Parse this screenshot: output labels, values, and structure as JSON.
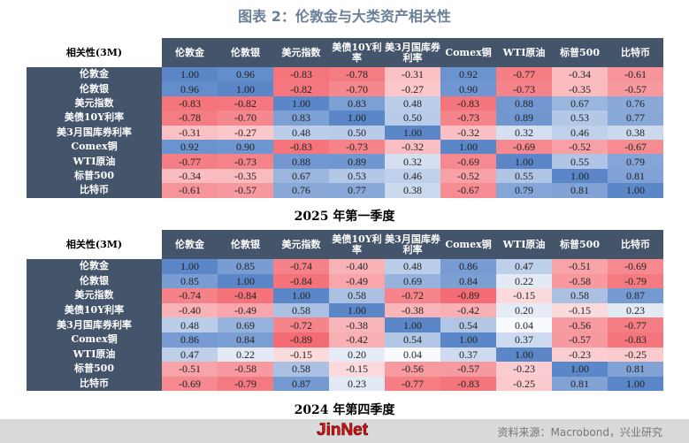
{
  "title": "图表 2：伦敦金与大类资产相关性",
  "chart_data": [
    {
      "type": "heatmap",
      "caption": "2025 年第一季度",
      "corner": "相关性(3M)",
      "columns": [
        "伦敦金",
        "伦敦银",
        "美元指数",
        "美债10Y利率",
        "美3月国库券利率",
        "Comex铜",
        "WTI原油",
        "标普500",
        "比特币"
      ],
      "rows": [
        {
          "label": "伦敦金",
          "values": [
            1.0,
            0.96,
            -0.83,
            -0.78,
            -0.31,
            0.92,
            -0.77,
            -0.34,
            -0.61
          ]
        },
        {
          "label": "伦敦银",
          "values": [
            0.96,
            1.0,
            -0.82,
            -0.7,
            -0.27,
            0.9,
            -0.73,
            -0.35,
            -0.57
          ]
        },
        {
          "label": "美元指数",
          "values": [
            -0.83,
            -0.82,
            1.0,
            0.83,
            0.48,
            -0.83,
            0.88,
            0.67,
            0.76
          ]
        },
        {
          "label": "美债10Y利率",
          "values": [
            -0.78,
            -0.7,
            0.83,
            1.0,
            0.5,
            -0.73,
            0.89,
            0.53,
            0.77
          ]
        },
        {
          "label": "美3月国库券利率",
          "values": [
            -0.31,
            -0.27,
            0.48,
            0.5,
            1.0,
            -0.32,
            0.32,
            0.46,
            0.38
          ]
        },
        {
          "label": "Comex铜",
          "values": [
            0.92,
            0.9,
            -0.83,
            -0.73,
            -0.32,
            1.0,
            -0.69,
            -0.52,
            -0.67
          ]
        },
        {
          "label": "WTI原油",
          "values": [
            -0.77,
            -0.73,
            0.88,
            0.89,
            0.32,
            -0.69,
            1.0,
            0.55,
            0.79
          ]
        },
        {
          "label": "标普500",
          "values": [
            -0.34,
            -0.35,
            0.67,
            0.53,
            0.46,
            -0.52,
            0.55,
            1.0,
            0.81
          ]
        },
        {
          "label": "比特币",
          "values": [
            -0.61,
            -0.57,
            0.76,
            0.77,
            0.38,
            -0.67,
            0.79,
            0.81,
            1.0
          ]
        }
      ]
    },
    {
      "type": "heatmap",
      "caption": "2024 年第四季度",
      "corner": "相关性(3M)",
      "columns": [
        "伦敦金",
        "伦敦银",
        "美元指数",
        "美债10Y利率",
        "美3月国库券利率",
        "Comex铜",
        "WTI原油",
        "标普500",
        "比特币"
      ],
      "rows": [
        {
          "label": "伦敦金",
          "values": [
            1.0,
            0.85,
            -0.74,
            -0.4,
            0.48,
            0.86,
            0.47,
            -0.51,
            -0.69
          ]
        },
        {
          "label": "伦敦银",
          "values": [
            0.85,
            1.0,
            -0.84,
            -0.49,
            0.69,
            0.84,
            0.22,
            -0.58,
            -0.79
          ]
        },
        {
          "label": "美元指数",
          "values": [
            -0.74,
            -0.84,
            1.0,
            0.58,
            -0.72,
            -0.89,
            -0.15,
            0.58,
            0.87
          ]
        },
        {
          "label": "美债10Y利率",
          "values": [
            -0.4,
            -0.49,
            0.58,
            1.0,
            -0.38,
            -0.42,
            0.2,
            -0.15,
            0.23
          ]
        },
        {
          "label": "美3月国库券利率",
          "values": [
            0.48,
            0.69,
            -0.72,
            -0.38,
            1.0,
            0.54,
            0.04,
            -0.56,
            -0.77
          ]
        },
        {
          "label": "Comex铜",
          "values": [
            0.86,
            0.84,
            -0.89,
            -0.42,
            0.54,
            1.0,
            0.37,
            -0.57,
            -0.83
          ]
        },
        {
          "label": "WTI原油",
          "values": [
            0.47,
            0.22,
            -0.15,
            0.2,
            0.04,
            0.37,
            1.0,
            -0.23,
            -0.25
          ]
        },
        {
          "label": "标普500",
          "values": [
            -0.51,
            -0.58,
            0.58,
            -0.15,
            -0.56,
            -0.57,
            -0.23,
            1.0,
            0.81
          ]
        },
        {
          "label": "比特币",
          "values": [
            -0.69,
            -0.79,
            0.87,
            0.23,
            -0.77,
            -0.83,
            -0.25,
            0.81,
            1.0
          ]
        }
      ]
    }
  ],
  "colors": {
    "positive": "#5b87c9",
    "negative": "#f25d66",
    "neutral": "#ffffff",
    "header": "#44546a"
  },
  "footer": {
    "logo": "JinNet",
    "source": "资料来源：Macrobond，兴业研究"
  }
}
